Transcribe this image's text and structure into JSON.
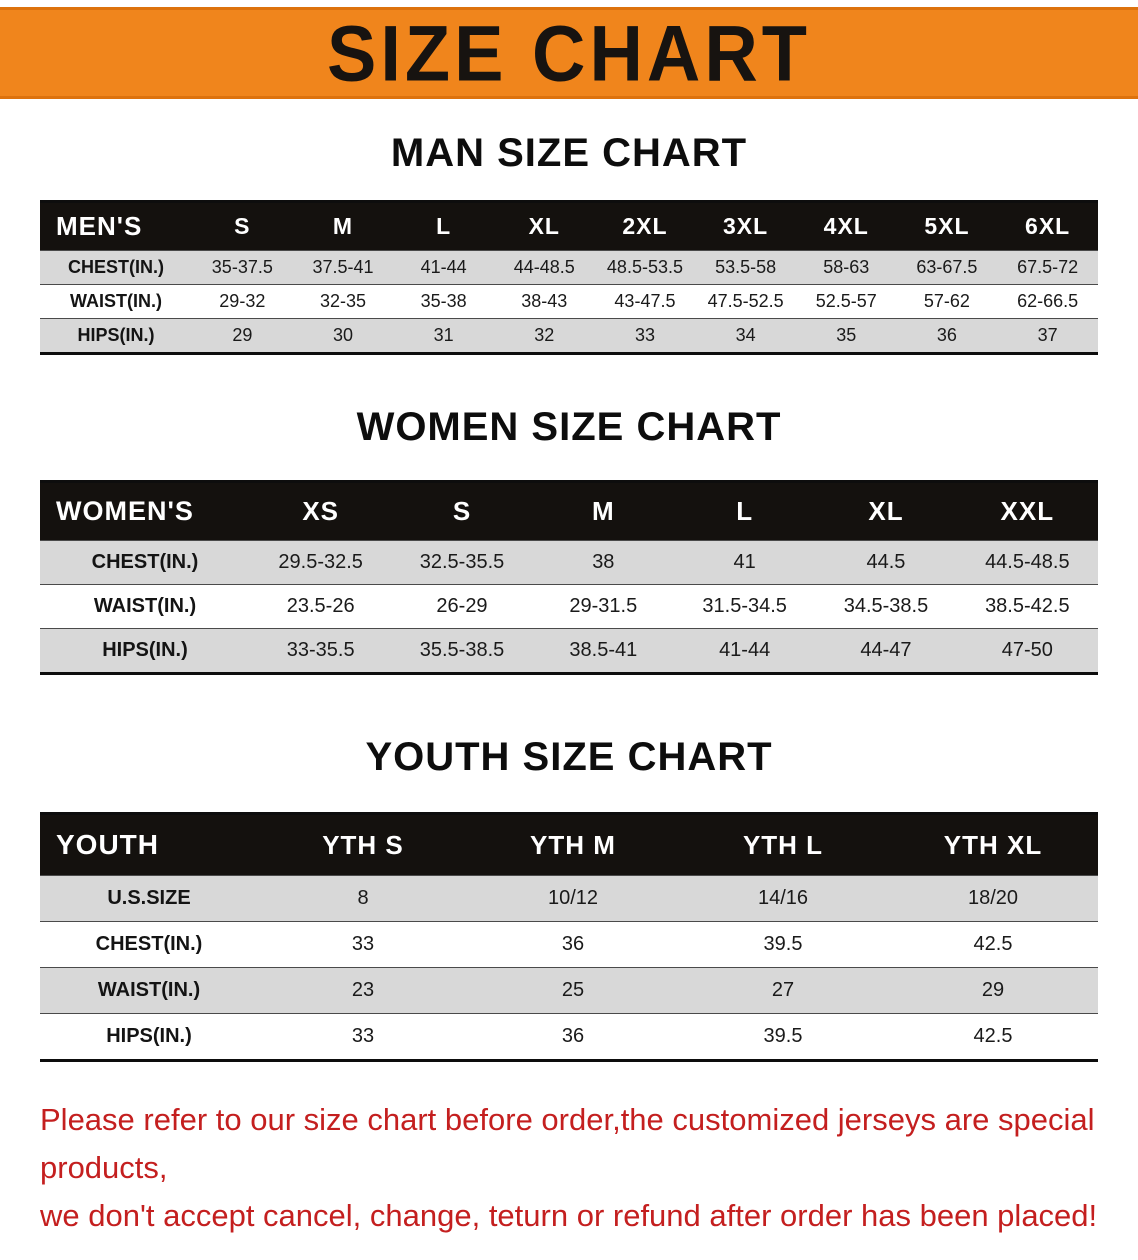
{
  "banner": {
    "title": "SIZE CHART"
  },
  "men": {
    "heading": "MAN SIZE CHART",
    "header": [
      "MEN'S",
      "S",
      "M",
      "L",
      "XL",
      "2XL",
      "3XL",
      "4XL",
      "5XL",
      "6XL"
    ],
    "rows": [
      [
        "CHEST(IN.)",
        "35-37.5",
        "37.5-41",
        "41-44",
        "44-48.5",
        "48.5-53.5",
        "53.5-58",
        "58-63",
        "63-67.5",
        "67.5-72"
      ],
      [
        "WAIST(IN.)",
        "29-32",
        "32-35",
        "35-38",
        "38-43",
        "43-47.5",
        "47.5-52.5",
        "52.5-57",
        "57-62",
        "62-66.5"
      ],
      [
        "HIPS(IN.)",
        "29",
        "30",
        "31",
        "32",
        "33",
        "34",
        "35",
        "36",
        "37"
      ]
    ]
  },
  "women": {
    "heading": "WOMEN SIZE CHART",
    "header": [
      "WOMEN'S",
      "XS",
      "S",
      "M",
      "L",
      "XL",
      "XXL"
    ],
    "rows": [
      [
        "CHEST(IN.)",
        "29.5-32.5",
        "32.5-35.5",
        "38",
        "41",
        "44.5",
        "44.5-48.5"
      ],
      [
        "WAIST(IN.)",
        "23.5-26",
        "26-29",
        "29-31.5",
        "31.5-34.5",
        "34.5-38.5",
        "38.5-42.5"
      ],
      [
        "HIPS(IN.)",
        "33-35.5",
        "35.5-38.5",
        "38.5-41",
        "41-44",
        "44-47",
        "47-50"
      ]
    ]
  },
  "youth": {
    "heading": "YOUTH SIZE CHART",
    "header": [
      "YOUTH",
      "YTH S",
      "YTH M",
      "YTH L",
      "YTH XL"
    ],
    "rows": [
      [
        "U.S.SIZE",
        "8",
        "10/12",
        "14/16",
        "18/20"
      ],
      [
        "CHEST(IN.)",
        "33",
        "36",
        "39.5",
        "42.5"
      ],
      [
        "WAIST(IN.)",
        "23",
        "25",
        "27",
        "29"
      ],
      [
        "HIPS(IN.)",
        "33",
        "36",
        "39.5",
        "42.5"
      ]
    ]
  },
  "disclaimer": {
    "line1": "Please refer to our size chart before order,the customized jerseys are special products,",
    "line2": "we don't accept cancel, change, teturn or refund after order has been placed!"
  },
  "colors": {
    "banner_bg": "#F0851C",
    "banner_edge": "#DD720D",
    "banner_text": "#171310",
    "table_header_bg": "#14110E",
    "table_header_text": "#FFFFFF",
    "row_alt_bg": "#D8D8D8",
    "border": "#0D0D0D",
    "disclaimer_text": "#C41F1F"
  }
}
